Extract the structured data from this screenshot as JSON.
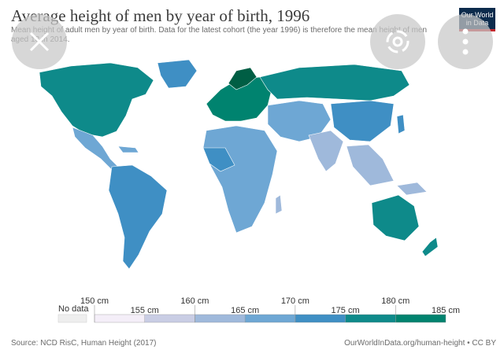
{
  "header": {
    "title": "Average height of men by year of birth, 1996",
    "subtitle": "Mean height of adult men by year of birth. Data for the latest cohort (the year 1996) is therefore the mean height of men aged 18 in 2014.",
    "logo_line1": "Our World",
    "logo_line2": "in Data"
  },
  "overlay": {
    "close_icon": "close-icon",
    "lens_icon": "lens-icon",
    "more_icon": "more-icon"
  },
  "legend": {
    "no_data_label": "No data",
    "no_data_color": "#eeeeee",
    "ticks": [
      "150 cm",
      "155 cm",
      "160 cm",
      "165 cm",
      "170 cm",
      "175 cm",
      "180 cm",
      "185 cm"
    ],
    "colors": [
      "#f4eef8",
      "#c9cde4",
      "#9fb9db",
      "#6ea7d4",
      "#3f8fc4",
      "#0e8a8a",
      "#00836f",
      "#005e44"
    ]
  },
  "footer": {
    "source": "Source: NCD RisC, Human Height (2017)",
    "url": "OurWorldInData.org/human-height • CC BY"
  }
}
